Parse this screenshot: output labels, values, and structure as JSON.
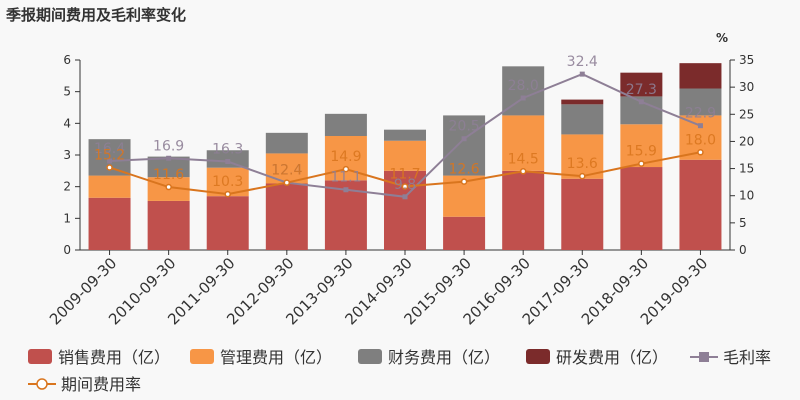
{
  "title": "季报期间费用及毛利率变化",
  "chart_data": {
    "type": "bar",
    "categories": [
      "2009-09-30",
      "2010-09-30",
      "2011-09-30",
      "2012-09-30",
      "2013-09-30",
      "2014-09-30",
      "2015-09-30",
      "2016-09-30",
      "2017-09-30",
      "2018-09-30",
      "2019-09-30"
    ],
    "left_axis": {
      "ylim": [
        0,
        6
      ],
      "ticks": [
        "0",
        "1",
        "2",
        "3",
        "4",
        "5",
        "6"
      ]
    },
    "right_axis": {
      "unit": "%",
      "ylim": [
        0,
        35
      ],
      "ticks": [
        "0",
        "5",
        "10",
        "15",
        "20",
        "25",
        "30",
        "35"
      ]
    },
    "series": [
      {
        "name": "销售费用（亿）",
        "color": "#c0504d",
        "values": [
          1.65,
          1.55,
          1.7,
          2.1,
          2.2,
          2.5,
          1.05,
          2.5,
          2.25,
          2.62,
          2.85
        ]
      },
      {
        "name": "管理费用（亿）",
        "color": "#f79646",
        "values": [
          0.7,
          0.75,
          0.9,
          0.95,
          1.4,
          0.95,
          1.3,
          1.75,
          1.4,
          1.35,
          1.4
        ]
      },
      {
        "name": "财务费用（亿）",
        "color": "#7f7f7f",
        "values": [
          1.15,
          0.65,
          0.55,
          0.65,
          0.7,
          0.35,
          1.9,
          1.55,
          0.95,
          0.88,
          0.85
        ]
      },
      {
        "name": "研发费用（亿）",
        "color": "#7b2b2b",
        "values": [
          0,
          0,
          0,
          0,
          0,
          0,
          0,
          0,
          0.15,
          0.75,
          0.8
        ]
      }
    ],
    "lines": [
      {
        "name": "毛利率",
        "color": "#8e7f96",
        "values": [
          16.4,
          16.9,
          16.3,
          12.4,
          11.1,
          9.8,
          20.5,
          28.0,
          32.4,
          27.3,
          22.9
        ],
        "labels": [
          "16.4",
          "16.9",
          "16.3",
          "12.4",
          "11.1",
          "9.8",
          "20.5",
          "28.0",
          "32.4",
          "27.3",
          "22.9"
        ]
      },
      {
        "name": "期间费用率",
        "color": "#d9751e",
        "values": [
          15.2,
          11.6,
          10.3,
          12.4,
          14.9,
          11.7,
          12.6,
          14.5,
          13.6,
          15.9,
          18.0
        ],
        "labels": [
          "15.2",
          "11.6",
          "10.3",
          "12.4",
          "14.9",
          "11.7",
          "12.6",
          "14.5",
          "13.6",
          "15.9",
          "18.0"
        ]
      }
    ],
    "legend_position": "bottom"
  }
}
